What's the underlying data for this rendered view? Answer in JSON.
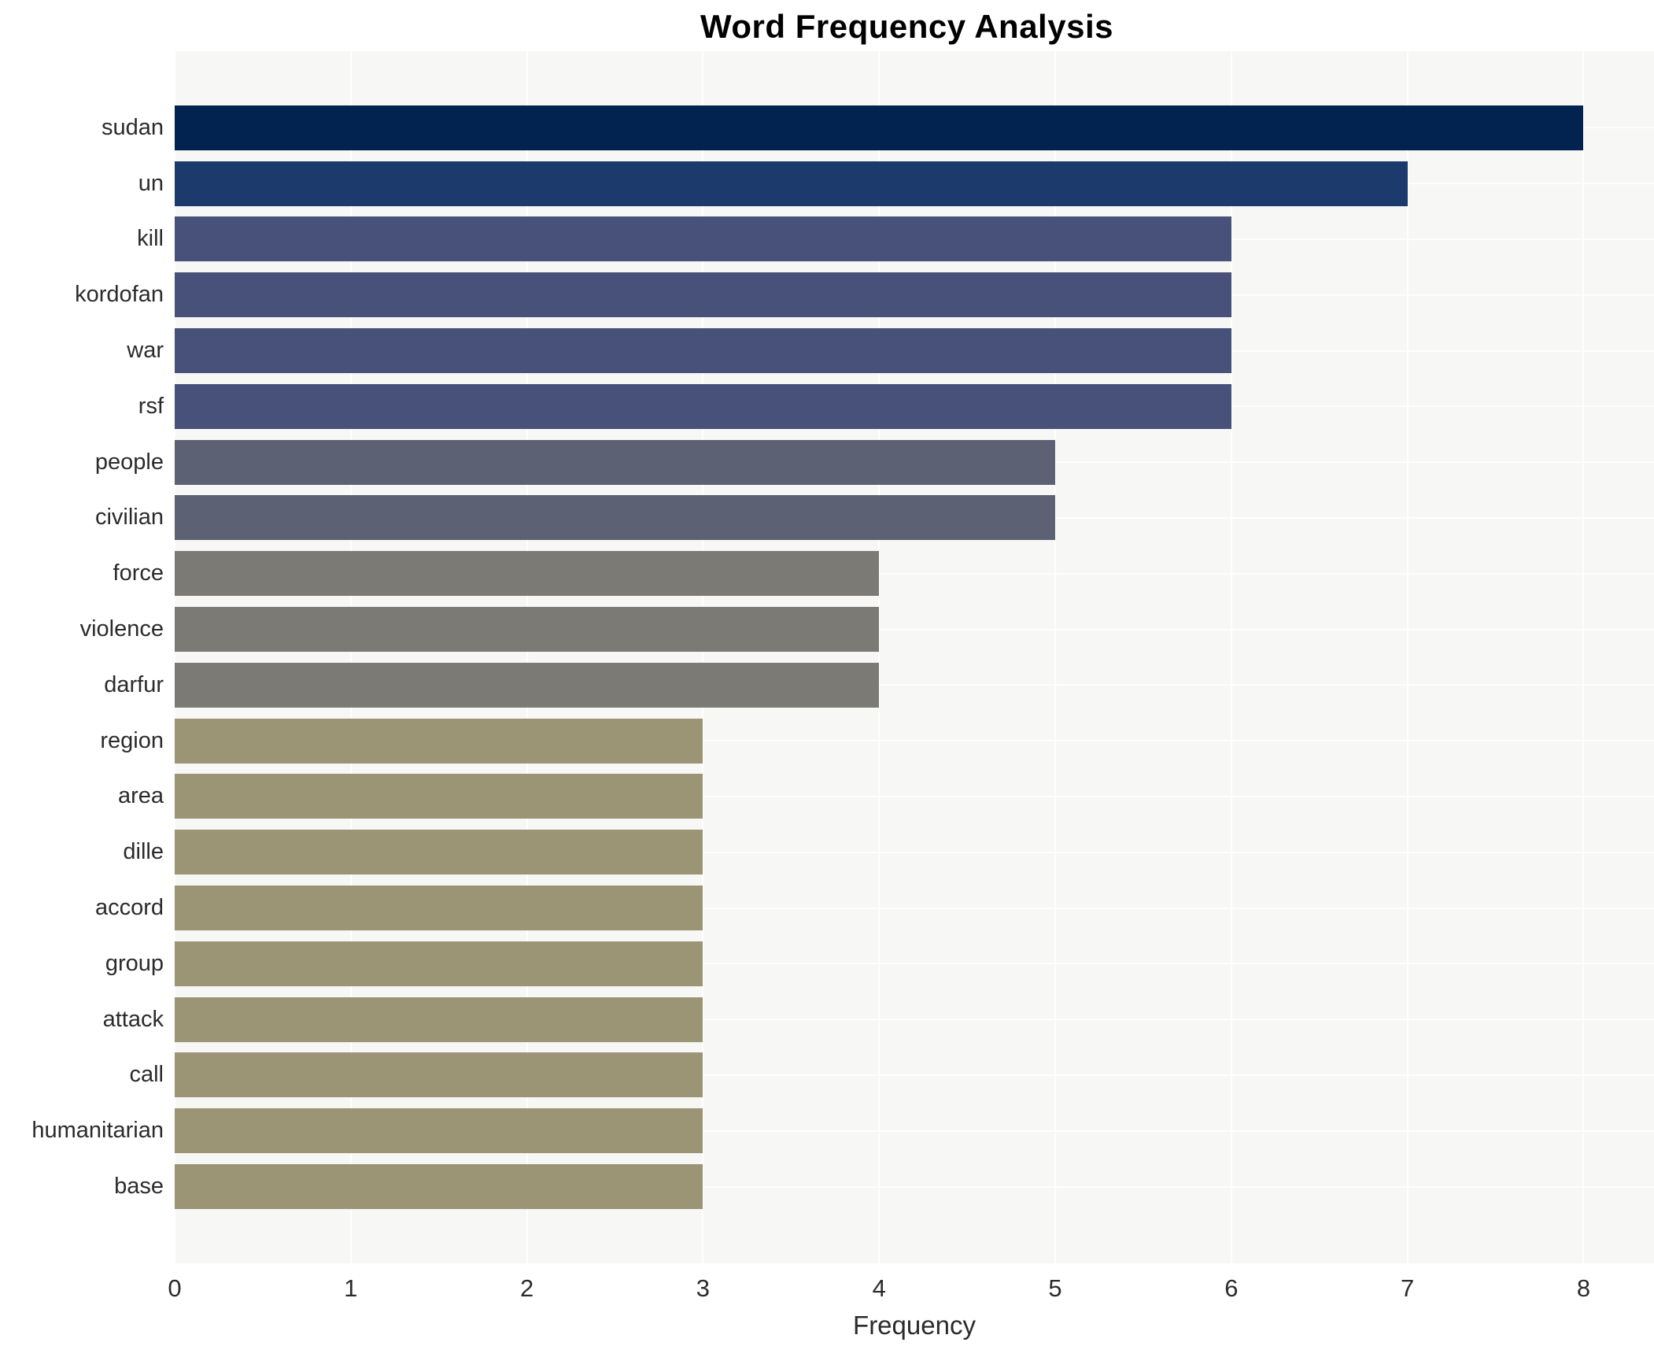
{
  "title": "Word Frequency Analysis",
  "xlabel": "Frequency",
  "colors": {
    "plot_background": "#f7f7f5",
    "gridline": "#ffffff",
    "text": "#2b2b2b",
    "title_text": "#000000"
  },
  "chart_data": {
    "type": "bar",
    "orientation": "horizontal",
    "title": "Word Frequency Analysis",
    "xlabel": "Frequency",
    "ylabel": "",
    "categories": [
      "sudan",
      "un",
      "kill",
      "kordofan",
      "war",
      "rsf",
      "people",
      "civilian",
      "force",
      "violence",
      "darfur",
      "region",
      "area",
      "dille",
      "accord",
      "group",
      "attack",
      "call",
      "humanitarian",
      "base"
    ],
    "values": [
      8,
      7,
      6,
      6,
      6,
      6,
      5,
      5,
      4,
      4,
      4,
      3,
      3,
      3,
      3,
      3,
      3,
      3,
      3,
      3
    ],
    "bar_colors": [
      "#022350",
      "#1c3a6c",
      "#47517a",
      "#47517a",
      "#47517a",
      "#47517a",
      "#5d6174",
      "#5d6174",
      "#7b7a75",
      "#7b7a75",
      "#7b7a75",
      "#9b9475",
      "#9b9475",
      "#9b9475",
      "#9b9475",
      "#9b9475",
      "#9b9475",
      "#9b9475",
      "#9b9475",
      "#9b9475"
    ],
    "xticks": [
      0,
      1,
      2,
      3,
      4,
      5,
      6,
      7,
      8
    ],
    "xlim": [
      0,
      8.4
    ],
    "grid": true,
    "legend": false
  }
}
